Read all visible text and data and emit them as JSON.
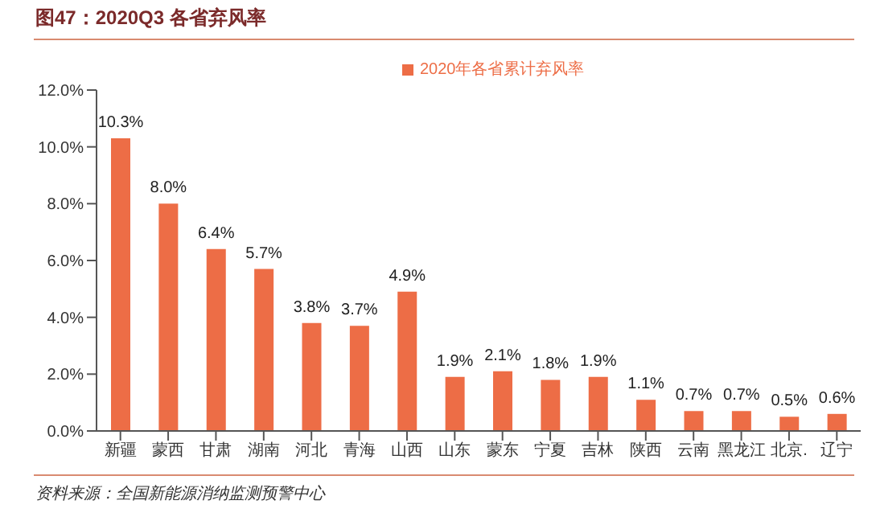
{
  "chart_data": {
    "type": "bar",
    "title": "图47：2020Q3 各省弃风率",
    "categories": [
      "新疆",
      "蒙西",
      "甘肃",
      "湖南",
      "河北",
      "青海",
      "山西",
      "山东",
      "蒙东",
      "宁夏",
      "吉林",
      "陕西",
      "云南",
      "黑龙江",
      "北京.",
      "辽宁"
    ],
    "series": [
      {
        "name": "2020年各省累计弃风率",
        "color": "#ed6d46",
        "values": [
          10.3,
          8.0,
          6.4,
          5.7,
          3.8,
          3.7,
          4.9,
          1.9,
          2.1,
          1.8,
          1.9,
          1.1,
          0.7,
          0.7,
          0.5,
          0.6
        ],
        "value_labels": [
          "10.3%",
          "8.0%",
          "6.4%",
          "5.7%",
          "3.8%",
          "3.7%",
          "4.9%",
          "1.9%",
          "2.1%",
          "1.8%",
          "1.9%",
          "1.1%",
          "0.7%",
          "0.7%",
          "0.5%",
          "0.6%"
        ]
      }
    ],
    "ylim": [
      0,
      12
    ],
    "yticks": [
      {
        "value": 0,
        "label": "0.0%"
      },
      {
        "value": 2,
        "label": "2.0%"
      },
      {
        "value": 4,
        "label": "4.0%"
      },
      {
        "value": 6,
        "label": "6.0%"
      },
      {
        "value": 8,
        "label": "8.0%"
      },
      {
        "value": 10,
        "label": "10.0%"
      },
      {
        "value": 12,
        "label": "12.0%"
      }
    ],
    "grid": false,
    "legend": "top right",
    "annotations": [
      "资料来源：全国新能源消纳监测预警中心"
    ]
  }
}
